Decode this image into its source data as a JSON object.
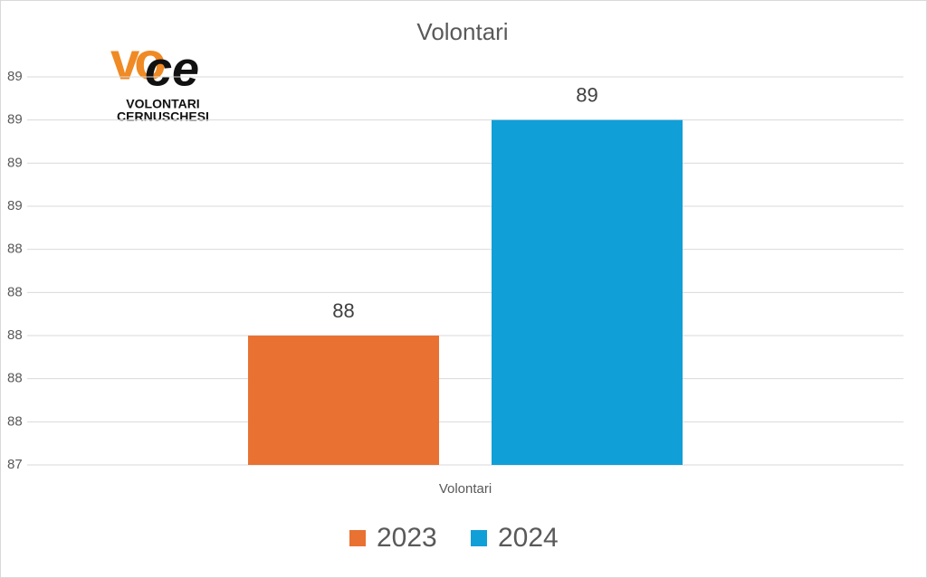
{
  "chart_data": {
    "type": "bar",
    "title": "Volontari",
    "categories": [
      "Volontari"
    ],
    "series": [
      {
        "name": "2023",
        "color": "#e97132",
        "values": [
          88
        ]
      },
      {
        "name": "2024",
        "color": "#119fd8",
        "values": [
          89
        ]
      }
    ],
    "ylim": [
      87.4,
      89.2
    ],
    "yticks": [
      {
        "value": 87.4,
        "label": "87"
      },
      {
        "value": 87.6,
        "label": "88"
      },
      {
        "value": 87.8,
        "label": "88"
      },
      {
        "value": 88.0,
        "label": "88"
      },
      {
        "value": 88.2,
        "label": "88"
      },
      {
        "value": 88.4,
        "label": "88"
      },
      {
        "value": 88.6,
        "label": "89"
      },
      {
        "value": 88.8,
        "label": "89"
      },
      {
        "value": 89.0,
        "label": "89"
      },
      {
        "value": 89.2,
        "label": "89"
      }
    ],
    "grid": true,
    "legend": "bottom"
  },
  "logo": {
    "mark": [
      "vo",
      "ce"
    ],
    "lines": [
      "VOLONTARI",
      "CERNUSCHESI"
    ]
  }
}
